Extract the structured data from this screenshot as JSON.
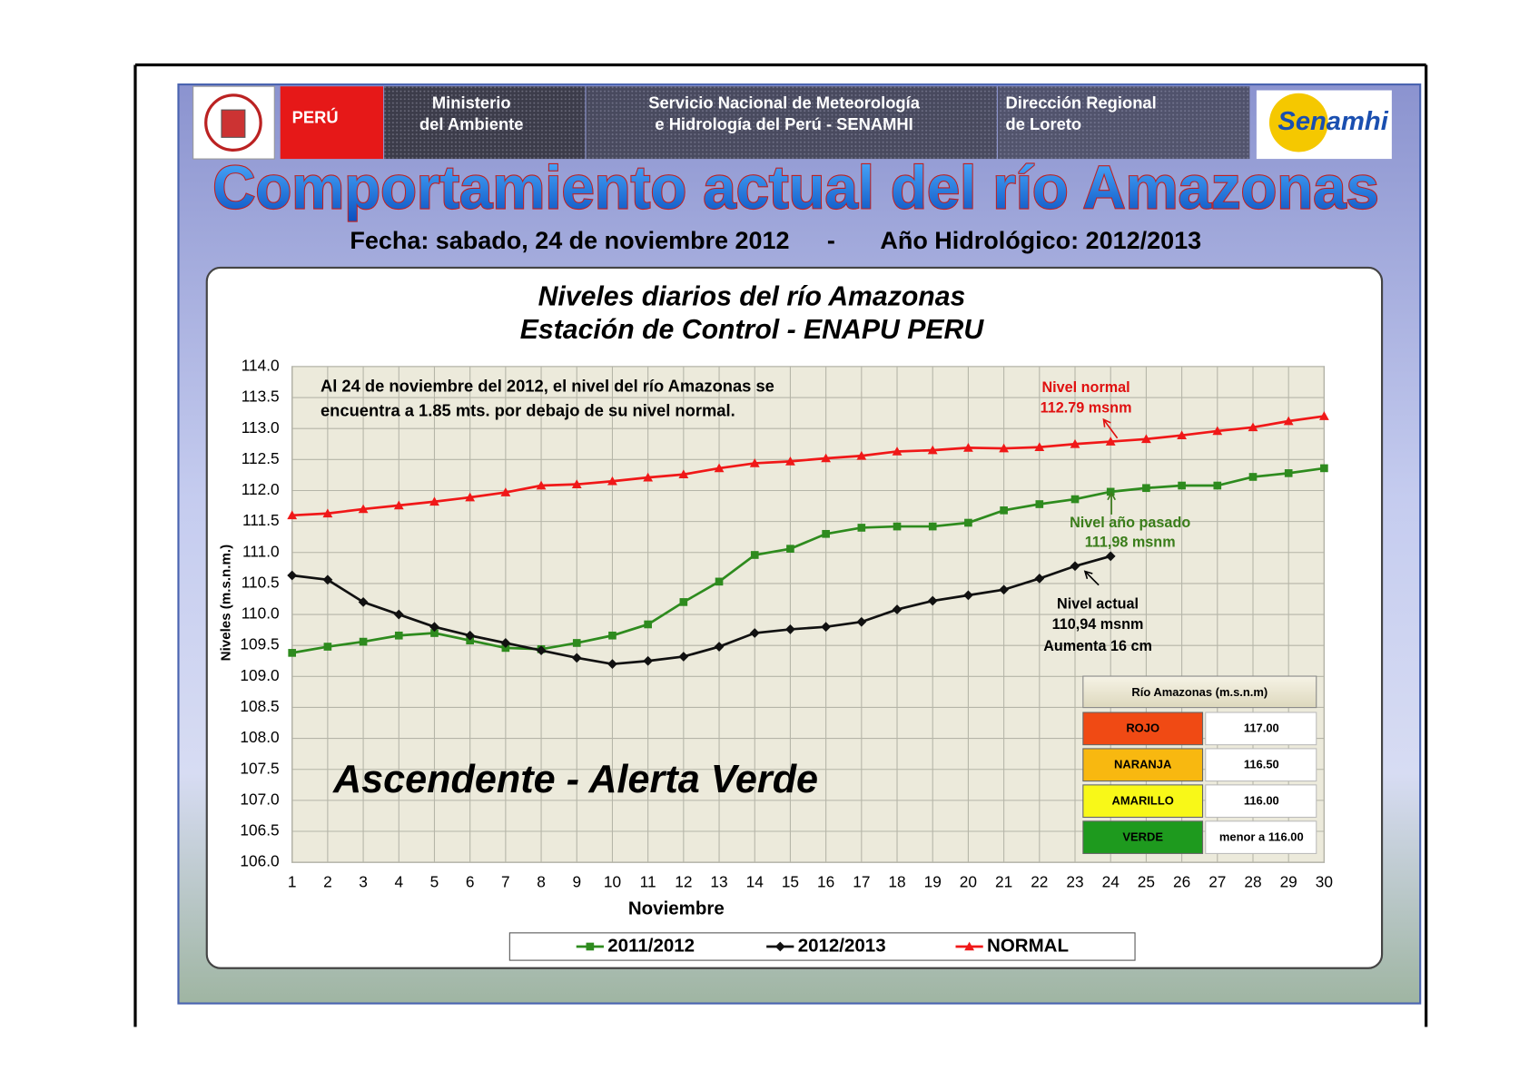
{
  "header": {
    "country": "PERÚ",
    "ministry": [
      "Ministerio",
      "del Ambiente"
    ],
    "service": [
      "Servicio Nacional de Meteorología",
      "e Hidrología del Perú - SENAMHI"
    ],
    "region": [
      "Dirección Regional",
      "de Loreto"
    ],
    "logo": "Senamhi",
    "title": "Comportamiento  actual del río  Amazonas",
    "date": "Fecha: sabado, 24 de noviembre 2012",
    "separator": "-",
    "hydro_year": "Año Hidrológico: 2012/2013"
  },
  "chart_data": {
    "type": "line",
    "title": [
      "Niveles diarios del río  Amazonas",
      "Estación  de Control -  ENAPU PERU"
    ],
    "x_label": "Noviembre",
    "y_label": "Niveles (m.s.n.m.)",
    "grid": true,
    "legend": "bottom",
    "x": [
      1,
      2,
      3,
      4,
      5,
      6,
      7,
      8,
      9,
      10,
      11,
      12,
      13,
      14,
      15,
      16,
      17,
      18,
      19,
      20,
      21,
      22,
      23,
      24,
      25,
      26,
      27,
      28,
      29,
      30
    ],
    "xlim": [
      1,
      30
    ],
    "xticks": [
      1,
      2,
      3,
      4,
      5,
      6,
      7,
      8,
      9,
      10,
      11,
      12,
      13,
      14,
      15,
      16,
      17,
      18,
      19,
      20,
      21,
      22,
      23,
      24,
      25,
      26,
      27,
      28,
      29,
      30
    ],
    "ylim": [
      106,
      114
    ],
    "yticks": [
      {
        "value": 106,
        "label": "106.0"
      },
      106.5,
      {
        "value": 107,
        "label": "107.0"
      },
      107.5,
      {
        "value": 108,
        "label": "108.0"
      },
      108.5,
      {
        "value": 109,
        "label": "109.0"
      },
      109.5,
      {
        "value": 110,
        "label": "110.0"
      },
      110.5,
      {
        "value": 111,
        "label": "111.0"
      },
      111.5,
      {
        "value": 112,
        "label": "112.0"
      },
      112.5,
      {
        "value": 113,
        "label": "113.0"
      },
      113.5,
      {
        "value": 114,
        "label": "114.0"
      }
    ],
    "series": [
      {
        "name": "2011/2012",
        "color": "#2e8b1e",
        "marker": "square",
        "values": [
          109.38,
          109.48,
          109.56,
          109.66,
          109.7,
          109.58,
          109.46,
          109.44,
          109.54,
          109.66,
          109.84,
          110.2,
          110.53,
          110.96,
          111.06,
          111.3,
          111.4,
          111.42,
          111.42,
          111.48,
          111.68,
          111.78,
          111.86,
          111.98,
          112.04,
          112.08,
          112.08,
          112.22,
          112.28,
          112.36
        ]
      },
      {
        "name": "2012/2013",
        "color": "#111111",
        "marker": "diamond",
        "values": [
          110.63,
          110.56,
          110.2,
          110.0,
          109.8,
          109.66,
          109.54,
          109.42,
          109.3,
          109.2,
          109.25,
          109.32,
          109.48,
          109.7,
          109.76,
          109.8,
          109.88,
          110.08,
          110.22,
          110.31,
          110.4,
          110.58,
          110.78,
          110.94,
          null,
          null,
          null,
          null,
          null,
          null
        ]
      },
      {
        "name": "NORMAL",
        "color": "#f01818",
        "marker": "triangle",
        "values": [
          111.6,
          111.63,
          111.7,
          111.76,
          111.82,
          111.89,
          111.97,
          112.08,
          112.1,
          112.15,
          112.21,
          112.26,
          112.36,
          112.44,
          112.47,
          112.52,
          112.56,
          112.63,
          112.65,
          112.69,
          112.68,
          112.7,
          112.75,
          112.79,
          112.83,
          112.89,
          112.96,
          113.02,
          113.12,
          113.2
        ]
      }
    ],
    "annotations": [
      {
        "lines": [
          "Al  24 de noviembre del 2012, el nivel del río Amazonas se",
          "encuentra  a 1.85 mts. por debajo de su nivel normal."
        ],
        "color": "#000000"
      },
      {
        "lines": [
          "Nivel normal",
          "112.79 msnm"
        ],
        "color": "#e01010"
      },
      {
        "lines": [
          "Nivel  año pasado",
          "111,98 msnm"
        ],
        "color": "#3a7d1a"
      },
      {
        "lines": [
          "Nivel actual",
          "110,94 msnm",
          "Aumenta  16 cm"
        ],
        "color": "#000000"
      }
    ],
    "status": "Ascendente - Alerta Verde"
  },
  "alert_table": {
    "title": "Río  Amazonas (m.s.n.m)",
    "rows": [
      {
        "label": "ROJO",
        "value": "117.00",
        "color": "#f04a14"
      },
      {
        "label": "NARANJA",
        "value": "116.50",
        "color": "#f8b810"
      },
      {
        "label": "AMARILLO",
        "value": "116.00",
        "color": "#f8f818"
      },
      {
        "label": "VERDE",
        "value": "menor a 116.00",
        "color": "#1e9a1e"
      }
    ]
  }
}
